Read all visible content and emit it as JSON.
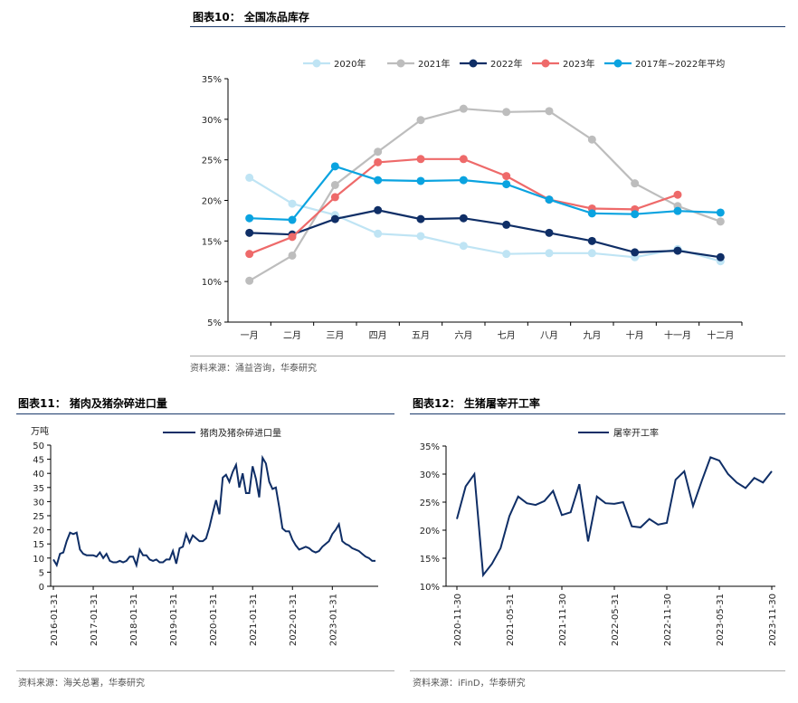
{
  "figures": {
    "f10": {
      "title": "图表10：  全国冻品库存",
      "source": "资料来源：涌益咨询，华泰研究"
    },
    "f11": {
      "title": "图表11：  猪肉及猪杂碎进口量",
      "source": "资料来源：海关总署，华泰研究"
    },
    "f12": {
      "title": "图表12：  生猪屠宰开工率",
      "source": "资料来源：iFinD，华泰研究"
    }
  },
  "chart_data": [
    {
      "type": "line",
      "title": "图表10：  全国冻品库存",
      "categories": [
        "一月",
        "二月",
        "三月",
        "四月",
        "五月",
        "六月",
        "七月",
        "八月",
        "九月",
        "十月",
        "十一月",
        "十二月"
      ],
      "ylim": [
        0.05,
        0.35
      ],
      "yticks": [
        "5%",
        "10%",
        "15%",
        "20%",
        "25%",
        "30%",
        "35%"
      ],
      "grid": false,
      "legend": "top",
      "series": [
        {
          "name": "2020年",
          "color": "#bfe4f4",
          "values": [
            0.228,
            0.196,
            0.182,
            0.159,
            0.156,
            0.144,
            0.134,
            0.135,
            0.135,
            0.13,
            0.14,
            0.125
          ]
        },
        {
          "name": "2021年",
          "color": "#bdbdbd",
          "values": [
            0.101,
            0.132,
            0.219,
            0.26,
            0.299,
            0.313,
            0.309,
            0.31,
            0.275,
            0.221,
            0.193,
            0.174
          ]
        },
        {
          "name": "2022年",
          "color": "#0f2e66",
          "values": [
            0.16,
            0.158,
            0.177,
            0.188,
            0.177,
            0.178,
            0.17,
            0.16,
            0.15,
            0.136,
            0.138,
            0.13
          ]
        },
        {
          "name": "2023年",
          "color": "#ee6a6a",
          "values": [
            0.134,
            0.155,
            0.204,
            0.247,
            0.251,
            0.251,
            0.23,
            0.201,
            0.19,
            0.189,
            0.207,
            null
          ]
        },
        {
          "name": "2017年~2022年平均",
          "color": "#0aa3e0",
          "values": [
            0.178,
            0.176,
            0.242,
            0.225,
            0.224,
            0.225,
            0.22,
            0.201,
            0.184,
            0.183,
            0.187,
            0.185
          ]
        }
      ]
    },
    {
      "type": "line",
      "title": "图表11：  猪肉及猪杂碎进口量",
      "ylabel": "万吨",
      "ylim": [
        0,
        50
      ],
      "yticks": [
        "0",
        "5",
        "10",
        "15",
        "20",
        "25",
        "30",
        "35",
        "40",
        "45",
        "50"
      ],
      "xticks": [
        "2016-01-31",
        "2017-01-31",
        "2018-01-31",
        "2019-01-31",
        "2020-01-31",
        "2021-01-31",
        "2022-01-31",
        "2023-01-31"
      ],
      "x_start": "2016-01",
      "grid": false,
      "legend": "top",
      "series": [
        {
          "name": "猪肉及猪杂碎进口量",
          "color": "#0f2e66",
          "values": [
            9.5,
            7.5,
            11.5,
            12,
            16,
            19,
            18.5,
            19,
            13,
            11.5,
            11,
            11,
            11,
            10.5,
            12,
            10,
            11.5,
            9,
            8.5,
            8.5,
            9,
            8.5,
            9,
            10.5,
            10.5,
            7.5,
            13,
            11,
            11,
            9.5,
            9,
            9.5,
            8.5,
            8.5,
            9.5,
            9.5,
            12.5,
            8,
            13.5,
            14,
            18.5,
            15.5,
            18,
            17,
            16,
            16,
            17,
            21,
            26,
            30.5,
            25.5,
            38.5,
            39.5,
            37,
            40.5,
            43,
            35,
            40,
            33,
            33,
            42.5,
            38,
            31.5,
            45.5,
            43.5,
            37,
            34.5,
            35,
            28,
            20.5,
            19.5,
            19.5,
            16.5,
            14.5,
            13,
            13.5,
            14,
            13.5,
            12.5,
            12,
            12.5,
            14,
            15,
            16,
            18.5,
            20,
            22,
            16,
            15,
            14.5,
            13.5,
            13,
            12.5,
            11.5,
            10.5,
            10,
            9,
            9
          ]
        }
      ]
    },
    {
      "type": "line",
      "title": "图表12：  生猪屠宰开工率",
      "ylim": [
        0.1,
        0.35
      ],
      "yticks": [
        "10%",
        "15%",
        "20%",
        "25%",
        "30%",
        "35%"
      ],
      "xticks": [
        "2020-11-30",
        "2021-05-31",
        "2021-11-30",
        "2022-05-31",
        "2022-11-30",
        "2023-05-31",
        "2023-11-30"
      ],
      "x_start": "2020-11",
      "grid": false,
      "legend": "top",
      "series": [
        {
          "name": "屠宰开工率",
          "color": "#0f2e66",
          "values": [
            0.22,
            0.278,
            0.3,
            0.12,
            0.14,
            0.168,
            0.225,
            0.26,
            0.248,
            0.245,
            0.252,
            0.27,
            0.227,
            0.232,
            0.282,
            0.18,
            0.26,
            0.248,
            0.247,
            0.25,
            0.207,
            0.205,
            0.22,
            0.21,
            0.213,
            0.29,
            0.305,
            0.243,
            0.288,
            0.33,
            0.324,
            0.3,
            0.285,
            0.275,
            0.293,
            0.285,
            0.305
          ]
        }
      ]
    }
  ]
}
